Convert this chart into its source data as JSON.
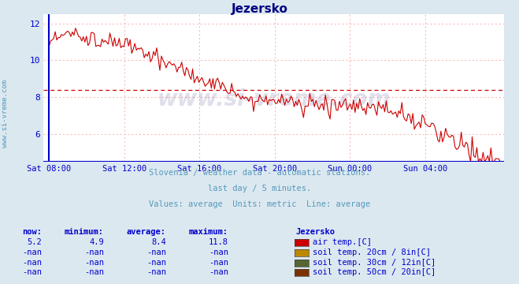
{
  "title": "Jezersko",
  "bg_color": "#dce8f0",
  "plot_bg_color": "#ffffff",
  "title_color": "#000080",
  "axis_color": "#0000cc",
  "grid_color": "#ffaaaa",
  "line_color": "#cc0000",
  "avg_line_color": "#cc0000",
  "avg_line_value": 8.4,
  "watermark": "www.si-vreme.com",
  "watermark_color": "#000066",
  "watermark_alpha": 0.12,
  "subtitle1": "Slovenia / weather data - automatic stations.",
  "subtitle2": "last day / 5 minutes.",
  "subtitle3": "Values: average  Units: metric  Line: average",
  "subtitle_color": "#5599bb",
  "ylabel_text": "www.si-vreme.com",
  "ylabel_color": "#5599bb",
  "ylim": [
    4.5,
    12.5
  ],
  "yticks": [
    6,
    8,
    10,
    12
  ],
  "xtick_labels": [
    "Sat 08:00",
    "Sat 12:00",
    "Sat 16:00",
    "Sat 20:00",
    "Sun 00:00",
    "Sun 04:00"
  ],
  "xtick_positions": [
    0,
    4,
    8,
    12,
    16,
    20
  ],
  "legend_rows": [
    {
      "now": "5.2",
      "min": "4.9",
      "avg": "8.4",
      "max": "11.8",
      "color": "#cc0000",
      "label": "air temp.[C]"
    },
    {
      "now": "-nan",
      "min": "-nan",
      "avg": "-nan",
      "max": "-nan",
      "color": "#bb8800",
      "label": "soil temp. 20cm / 8in[C]"
    },
    {
      "now": "-nan",
      "min": "-nan",
      "avg": "-nan",
      "max": "-nan",
      "color": "#556633",
      "label": "soil temp. 30cm / 12in[C]"
    },
    {
      "now": "-nan",
      "min": "-nan",
      "avg": "-nan",
      "max": "-nan",
      "color": "#7a3300",
      "label": "soil temp. 50cm / 20in[C]"
    }
  ],
  "legend_headers": [
    "now:",
    "minimum:",
    "average:",
    "maximum:",
    "Jezersko"
  ]
}
